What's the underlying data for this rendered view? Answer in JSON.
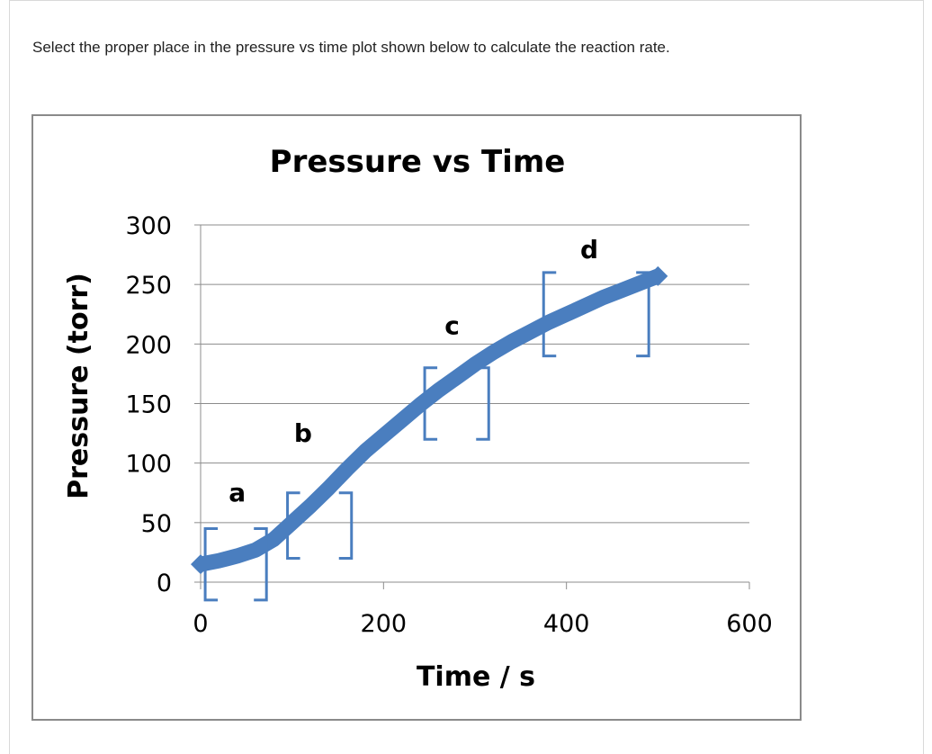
{
  "question": {
    "text": "Select the proper place in the pressure vs time plot shown below to calculate the reaction rate."
  },
  "colors": {
    "curve": "#4a7ebf",
    "bracket": "#4a7ebf",
    "grid": "#8c8c8c",
    "text": "#000000"
  },
  "chart_data": {
    "type": "line",
    "title": "Pressure vs Time",
    "xlabel": "Time / s",
    "ylabel": "Pressure (torr)",
    "xlim": [
      0,
      600
    ],
    "ylim": [
      0,
      300
    ],
    "x_ticks": [
      "0",
      "200",
      "400",
      "600"
    ],
    "y_ticks": [
      "0",
      "50",
      "100",
      "150",
      "200",
      "250",
      "300"
    ],
    "grid": "horizontal",
    "legend": "none",
    "series": [
      {
        "x": [
          0,
          20,
          40,
          60,
          80,
          100,
          120,
          140,
          160,
          180,
          200,
          220,
          240,
          260,
          280,
          300,
          320,
          340,
          360,
          380,
          400,
          420,
          440,
          460,
          480,
          500
        ],
        "y": [
          15,
          18,
          22,
          27,
          36,
          50,
          64,
          79,
          95,
          110,
          123,
          136,
          149,
          161,
          172,
          183,
          193,
          202,
          210,
          218,
          225,
          232,
          239,
          245,
          251,
          257
        ]
      }
    ],
    "annotations": [
      {
        "label": "a",
        "x_left": 5,
        "x_right": 72,
        "y_low": -15,
        "y_high": 45,
        "label_x": 40,
        "label_y": 68
      },
      {
        "label": "b",
        "x_left": 95,
        "x_right": 165,
        "y_low": 20,
        "y_high": 75,
        "label_x": 112,
        "label_y": 118
      },
      {
        "label": "c",
        "x_left": 245,
        "x_right": 315,
        "y_low": 120,
        "y_high": 180,
        "label_x": 275,
        "label_y": 208
      },
      {
        "label": "d",
        "x_left": 375,
        "x_right": 490,
        "y_low": 190,
        "y_high": 260,
        "label_x": 425,
        "label_y": 272
      }
    ]
  }
}
